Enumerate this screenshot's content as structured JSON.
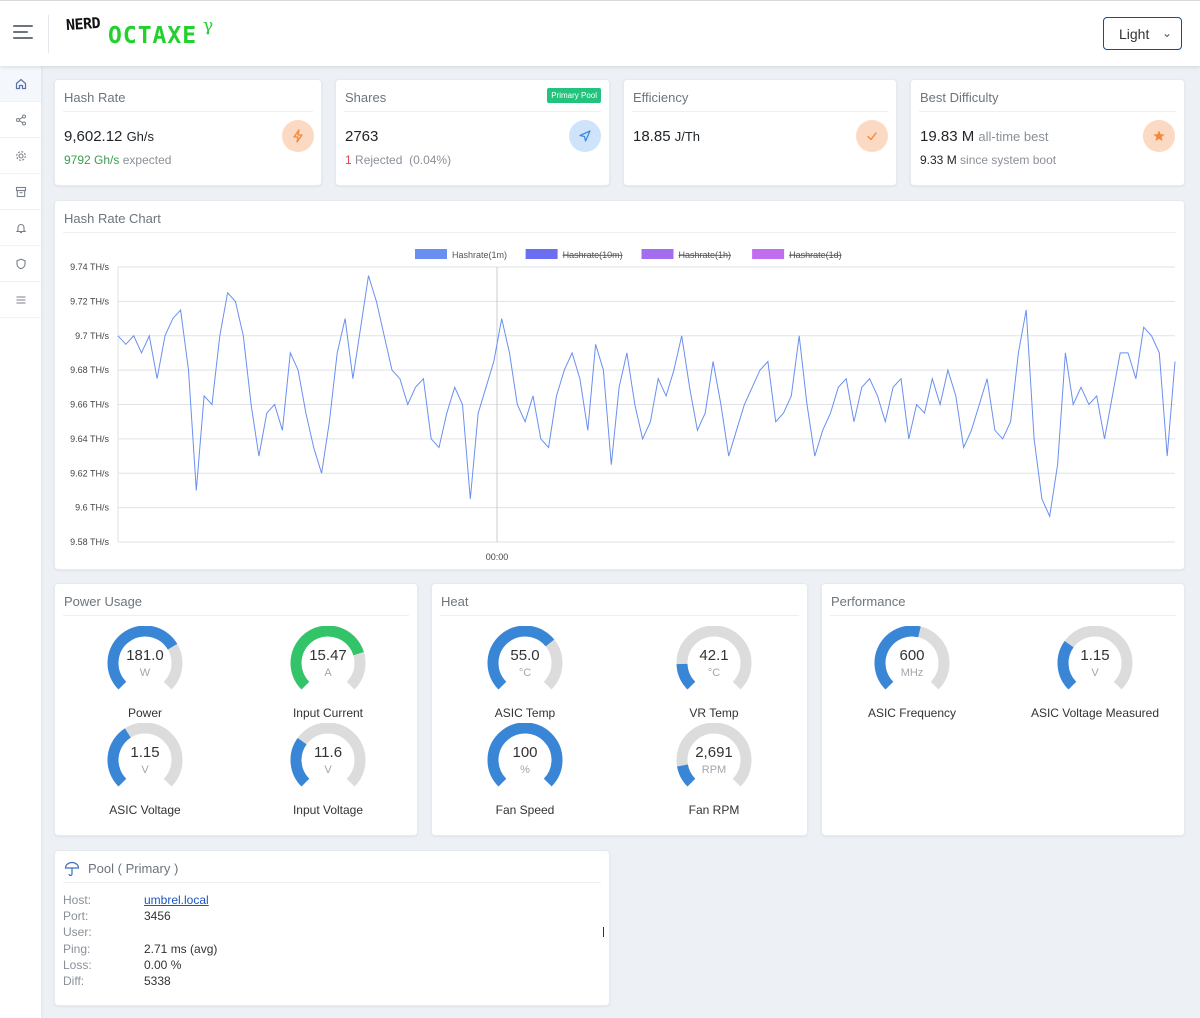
{
  "header": {
    "logo_top": "NERD",
    "logo_main": "OCTAXE",
    "logo_sup": "γ",
    "theme_value": "Light"
  },
  "sidebar": {
    "items": [
      {
        "icon": "home-icon"
      },
      {
        "icon": "share-icon"
      },
      {
        "icon": "gear-icon"
      },
      {
        "icon": "archive-icon"
      },
      {
        "icon": "bell-icon"
      },
      {
        "icon": "shield-icon"
      },
      {
        "icon": "list-icon"
      }
    ]
  },
  "stats": {
    "hashrate": {
      "title": "Hash Rate",
      "value": "9,602.12",
      "unit": "Gh/s",
      "expected_value": "9792",
      "expected_unit": "Gh/s",
      "expected_label": "expected"
    },
    "shares": {
      "title": "Shares",
      "badge": "Primary Pool",
      "value": "2763",
      "rejected_count": "1",
      "rejected_label": "Rejected",
      "rejected_pct": "(0.04%)"
    },
    "efficiency": {
      "title": "Efficiency",
      "value": "18.85",
      "unit": "J/Th"
    },
    "difficulty": {
      "title": "Best Difficulty",
      "value": "19.83 M",
      "value_label": "all-time best",
      "boot_value": "9.33 M",
      "boot_label": "since system boot"
    }
  },
  "colors": {
    "orange_bg": "#fbd9c2",
    "orange_fg": "#f0883e",
    "blue_bg": "#cfe4fb",
    "blue_fg": "#3d8be0",
    "gauge_blue": "#3a86d6",
    "gauge_green": "#33c46a",
    "gauge_track": "#dcdcdc"
  },
  "chart": {
    "title": "Hash Rate Chart",
    "legend": [
      {
        "label": "Hashrate(1m)",
        "color": "#6a8ff0",
        "struck": false
      },
      {
        "label": "Hashrate(10m)",
        "color": "#6b6ef0",
        "struck": true
      },
      {
        "label": "Hashrate(1h)",
        "color": "#a36df0",
        "struck": true
      },
      {
        "label": "Hashrate(1d)",
        "color": "#c26df0",
        "struck": true
      }
    ],
    "x_tick": "00:00"
  },
  "chart_data": {
    "type": "line",
    "title": "",
    "xlabel": "",
    "ylabel": "",
    "ylim": [
      9.58,
      9.74
    ],
    "y_ticks": [
      "9.74 TH/s",
      "9.72 TH/s",
      "9.7 TH/s",
      "9.68 TH/s",
      "9.66 TH/s",
      "9.64 TH/s",
      "9.62 TH/s",
      "9.6 TH/s",
      "9.58 TH/s"
    ],
    "x_ticks": [
      "00:00"
    ],
    "grid": true,
    "legend_position": "top",
    "series": [
      {
        "name": "Hashrate(1m)",
        "values": [
          9.7,
          9.695,
          9.7,
          9.69,
          9.7,
          9.675,
          9.7,
          9.71,
          9.715,
          9.68,
          9.61,
          9.665,
          9.66,
          9.7,
          9.725,
          9.72,
          9.7,
          9.66,
          9.63,
          9.655,
          9.66,
          9.645,
          9.69,
          9.68,
          9.655,
          9.635,
          9.62,
          9.65,
          9.69,
          9.71,
          9.675,
          9.705,
          9.735,
          9.72,
          9.7,
          9.68,
          9.675,
          9.66,
          9.67,
          9.675,
          9.64,
          9.635,
          9.655,
          9.67,
          9.66,
          9.605,
          9.655,
          9.67,
          9.685,
          9.71,
          9.69,
          9.66,
          9.65,
          9.665,
          9.64,
          9.635,
          9.665,
          9.68,
          9.69,
          9.675,
          9.645,
          9.695,
          9.68,
          9.625,
          9.67,
          9.69,
          9.66,
          9.64,
          9.65,
          9.675,
          9.665,
          9.68,
          9.7,
          9.67,
          9.645,
          9.655,
          9.685,
          9.66,
          9.63,
          9.645,
          9.66,
          9.67,
          9.68,
          9.685,
          9.65,
          9.655,
          9.665,
          9.7,
          9.66,
          9.63,
          9.645,
          9.655,
          9.67,
          9.675,
          9.65,
          9.67,
          9.675,
          9.665,
          9.65,
          9.67,
          9.675,
          9.64,
          9.66,
          9.655,
          9.675,
          9.66,
          9.68,
          9.665,
          9.635,
          9.645,
          9.66,
          9.675,
          9.645,
          9.64,
          9.65,
          9.69,
          9.715,
          9.64,
          9.605,
          9.595,
          9.625,
          9.69,
          9.66,
          9.67,
          9.66,
          9.665,
          9.64,
          9.665,
          9.69,
          9.69,
          9.675,
          9.705,
          9.7,
          9.69,
          9.63,
          9.685
        ]
      }
    ]
  },
  "power": {
    "title": "Power Usage",
    "gauges": [
      {
        "value": "181.0",
        "unit": "W",
        "label": "Power",
        "fraction": 0.72,
        "color": "blue"
      },
      {
        "value": "15.47",
        "unit": "A",
        "label": "Input Current",
        "fraction": 0.77,
        "color": "green"
      },
      {
        "value": "1.15",
        "unit": "V",
        "label": "ASIC Voltage",
        "fraction": 0.38,
        "color": "blue"
      },
      {
        "value": "11.6",
        "unit": "V",
        "label": "Input Voltage",
        "fraction": 0.3,
        "color": "blue"
      }
    ]
  },
  "heat": {
    "title": "Heat",
    "gauges": [
      {
        "value": "55.0",
        "unit": "°C",
        "label": "ASIC Temp",
        "fraction": 0.69,
        "color": "blue"
      },
      {
        "value": "42.1",
        "unit": "°C",
        "label": "VR Temp",
        "fraction": 0.16,
        "color": "blue"
      },
      {
        "value": "100",
        "unit": "%",
        "label": "Fan Speed",
        "fraction": 1.0,
        "color": "blue"
      },
      {
        "value": "2,691",
        "unit": "RPM",
        "label": "Fan RPM",
        "fraction": 0.13,
        "color": "blue"
      }
    ]
  },
  "performance": {
    "title": "Performance",
    "gauges": [
      {
        "value": "600",
        "unit": "MHz",
        "label": "ASIC Frequency",
        "fraction": 0.55,
        "color": "blue"
      },
      {
        "value": "1.15",
        "unit": "V",
        "label": "ASIC Voltage Measured",
        "fraction": 0.3,
        "color": "blue"
      }
    ]
  },
  "pool": {
    "title": "Pool ( Primary )",
    "rows": [
      {
        "label": "Host:",
        "value": "umbrel.local"
      },
      {
        "label": "Port:",
        "value": "3456"
      },
      {
        "label": "User:",
        "value": ""
      },
      {
        "label": "Ping:",
        "value": "2.71 ms (avg)"
      },
      {
        "label": "Loss:",
        "value": "0.00 %"
      },
      {
        "label": "Diff:",
        "value": "5338"
      }
    ]
  }
}
